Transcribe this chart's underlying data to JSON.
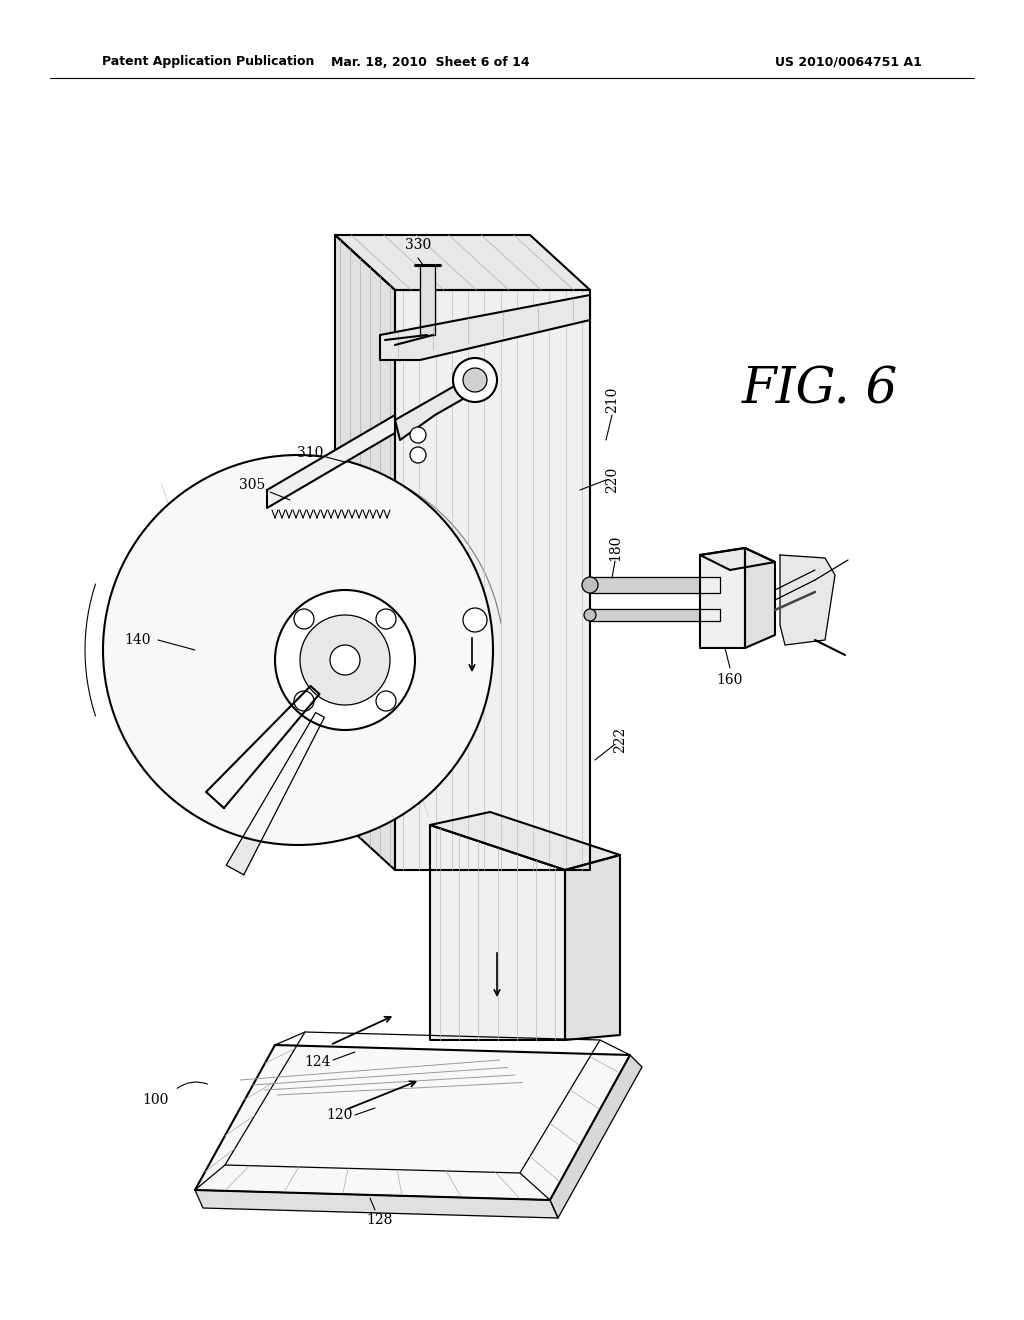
{
  "title_left": "Patent Application Publication",
  "title_mid": "Mar. 18, 2010  Sheet 6 of 14",
  "title_right": "US 2010/0064751 A1",
  "fig_label": "FIG. 6",
  "bg_color": "#ffffff",
  "header_fontsize": 9,
  "label_fontsize": 10,
  "fig_label_fontsize": 36,
  "lw_main": 1.5,
  "lw_thin": 0.9,
  "lw_thick": 2.2
}
